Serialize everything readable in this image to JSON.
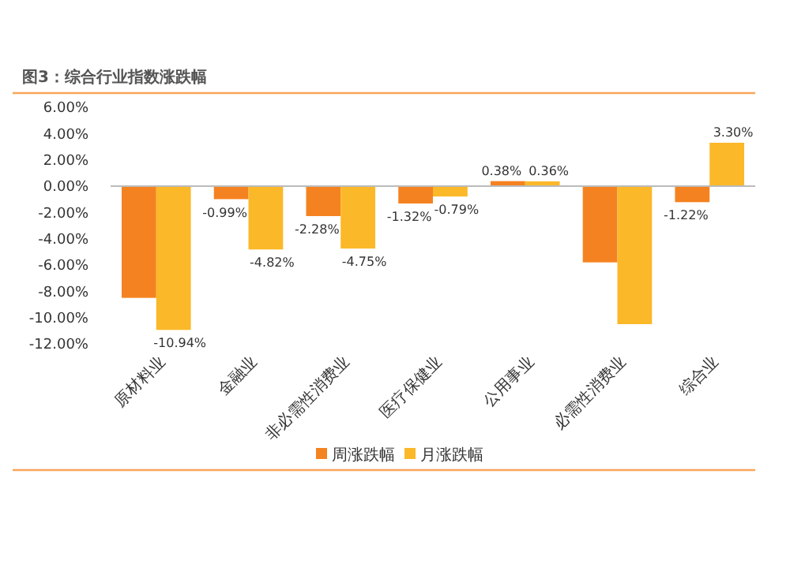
{
  "chart_data": {
    "type": "bar",
    "title": "图3：综合行业指数涨跌幅",
    "categories": [
      "原材料业",
      "金融业",
      "非必需性消费业",
      "医疗保健业",
      "公用事业",
      "必需性消费业",
      "综合业"
    ],
    "series": [
      {
        "name": "周涨跌幅",
        "color": "#f58220",
        "values": [
          -8.5,
          -0.99,
          -2.28,
          -1.32,
          0.38,
          -5.8,
          -1.22
        ],
        "value_labels": [
          null,
          "-0.99%",
          "-2.28%",
          "-1.32%",
          "0.38%",
          null,
          "-1.22%"
        ]
      },
      {
        "name": "月涨跌幅",
        "color": "#fbb829",
        "values": [
          -10.94,
          -4.82,
          -4.75,
          -0.79,
          0.36,
          -10.5,
          3.3
        ],
        "value_labels": [
          "-10.94%",
          "-4.82%",
          "-4.75%",
          "-0.79%",
          "0.36%",
          null,
          "3.30%"
        ]
      }
    ],
    "ylim": [
      -12,
      6
    ],
    "yticks": [
      {
        "value": 6,
        "label": "6.00%"
      },
      {
        "value": 4,
        "label": "4.00%"
      },
      {
        "value": 2,
        "label": "2.00%"
      },
      {
        "value": 0,
        "label": "0.00%"
      },
      {
        "value": -2,
        "label": "-2.00%"
      },
      {
        "value": -4,
        "label": "-4.00%"
      },
      {
        "value": -6,
        "label": "-6.00%"
      },
      {
        "value": -8,
        "label": "-8.00%"
      },
      {
        "value": -10,
        "label": "-10.00%"
      },
      {
        "value": -12,
        "label": "-12.00%"
      }
    ],
    "legend": "bottom"
  }
}
